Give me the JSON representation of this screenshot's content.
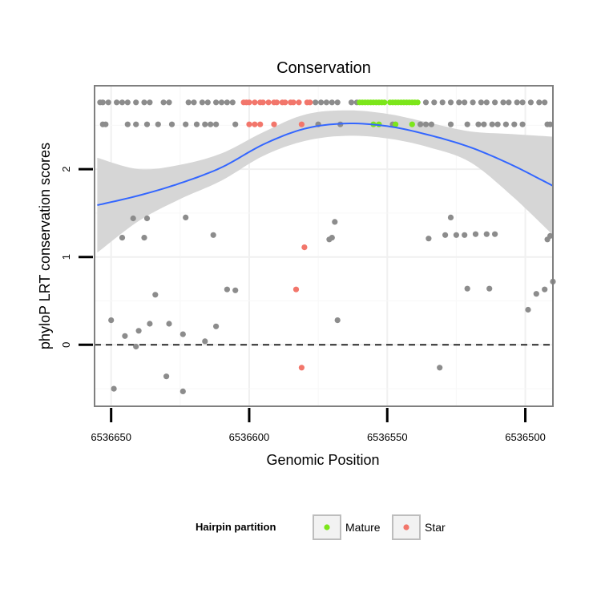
{
  "chart_data": {
    "type": "scatter",
    "title": "Conservation",
    "xlabel": "Genomic Position",
    "ylabel": "phyloP LRT conservation scores",
    "xlim": [
      6536656,
      6536490
    ],
    "ylim": [
      -0.7,
      2.95
    ],
    "x_reversed": true,
    "x_ticks": [
      6536650,
      6536600,
      6536550,
      6536500
    ],
    "x_tick_labels": [
      "6536650",
      "6536600",
      "6536550",
      "6536500"
    ],
    "y_ticks": [
      0,
      1,
      2
    ],
    "y_tick_labels": [
      "0",
      "1",
      "2"
    ],
    "grid": true,
    "reference_line": {
      "y": 0,
      "style": "dashed"
    },
    "legend": {
      "title": "Hairpin partition",
      "placement": "bottom",
      "entries": [
        {
          "name": "Mature",
          "color": "#7ce61a"
        },
        {
          "name": "Star",
          "color": "#f2766b"
        }
      ]
    },
    "colors": {
      "other": "#8c8c8c",
      "smooth_line": "#3366ff",
      "smooth_band": "#d6d6d6",
      "panel_border": "#7f7f7f"
    },
    "series": [
      {
        "name": "Other",
        "points": [
          [
            6536654,
            2.76
          ],
          [
            6536653,
            2.76
          ],
          [
            6536651,
            2.76
          ],
          [
            6536648,
            2.76
          ],
          [
            6536646,
            2.76
          ],
          [
            6536644,
            2.76
          ],
          [
            6536641,
            2.76
          ],
          [
            6536638,
            2.76
          ],
          [
            6536636,
            2.76
          ],
          [
            6536631,
            2.76
          ],
          [
            6536629,
            2.76
          ],
          [
            6536622,
            2.76
          ],
          [
            6536620,
            2.76
          ],
          [
            6536617,
            2.76
          ],
          [
            6536615,
            2.76
          ],
          [
            6536612,
            2.76
          ],
          [
            6536610,
            2.76
          ],
          [
            6536608,
            2.76
          ],
          [
            6536606,
            2.76
          ],
          [
            6536576,
            2.76
          ],
          [
            6536574,
            2.76
          ],
          [
            6536572,
            2.76
          ],
          [
            6536570,
            2.76
          ],
          [
            6536568,
            2.76
          ],
          [
            6536563,
            2.76
          ],
          [
            6536561,
            2.76
          ],
          [
            6536536,
            2.76
          ],
          [
            6536533,
            2.76
          ],
          [
            6536530,
            2.76
          ],
          [
            6536527,
            2.76
          ],
          [
            6536524,
            2.76
          ],
          [
            6536522,
            2.76
          ],
          [
            6536519,
            2.76
          ],
          [
            6536516,
            2.76
          ],
          [
            6536514,
            2.76
          ],
          [
            6536511,
            2.76
          ],
          [
            6536508,
            2.76
          ],
          [
            6536506,
            2.76
          ],
          [
            6536503,
            2.76
          ],
          [
            6536501,
            2.76
          ],
          [
            6536498,
            2.76
          ],
          [
            6536495,
            2.76
          ],
          [
            6536493,
            2.76
          ],
          [
            6536653,
            2.51
          ],
          [
            6536652,
            2.51
          ],
          [
            6536644,
            2.51
          ],
          [
            6536641,
            2.51
          ],
          [
            6536637,
            2.51
          ],
          [
            6536633,
            2.51
          ],
          [
            6536628,
            2.51
          ],
          [
            6536623,
            2.51
          ],
          [
            6536619,
            2.51
          ],
          [
            6536616,
            2.51
          ],
          [
            6536614,
            2.51
          ],
          [
            6536612,
            2.51
          ],
          [
            6536605,
            2.51
          ],
          [
            6536575,
            2.51
          ],
          [
            6536567,
            2.51
          ],
          [
            6536548,
            2.51
          ],
          [
            6536538,
            2.51
          ],
          [
            6536536,
            2.51
          ],
          [
            6536534,
            2.51
          ],
          [
            6536527,
            2.51
          ],
          [
            6536521,
            2.51
          ],
          [
            6536517,
            2.51
          ],
          [
            6536515,
            2.51
          ],
          [
            6536512,
            2.51
          ],
          [
            6536510,
            2.51
          ],
          [
            6536507,
            2.51
          ],
          [
            6536504,
            2.51
          ],
          [
            6536501,
            2.51
          ],
          [
            6536492,
            2.51
          ],
          [
            6536491,
            2.51
          ],
          [
            6536642,
            1.44
          ],
          [
            6536637,
            1.44
          ],
          [
            6536623,
            1.45
          ],
          [
            6536613,
            1.25
          ],
          [
            6536638,
            1.22
          ],
          [
            6536646,
            1.22
          ],
          [
            6536569,
            1.4
          ],
          [
            6536570,
            1.22
          ],
          [
            6536571,
            1.2
          ],
          [
            6536535,
            1.21
          ],
          [
            6536527,
            1.45
          ],
          [
            6536529,
            1.25
          ],
          [
            6536525,
            1.25
          ],
          [
            6536522,
            1.25
          ],
          [
            6536518,
            1.26
          ],
          [
            6536514,
            1.26
          ],
          [
            6536511,
            1.26
          ],
          [
            6536491,
            1.24
          ],
          [
            6536492,
            1.2
          ],
          [
            6536634,
            0.57
          ],
          [
            6536608,
            0.63
          ],
          [
            6536605,
            0.62
          ],
          [
            6536521,
            0.64
          ],
          [
            6536513,
            0.64
          ],
          [
            6536499,
            0.4
          ],
          [
            6536496,
            0.58
          ],
          [
            6536493,
            0.63
          ],
          [
            6536490,
            0.72
          ],
          [
            6536650,
            0.28
          ],
          [
            6536645,
            0.1
          ],
          [
            6536640,
            0.16
          ],
          [
            6536636,
            0.24
          ],
          [
            6536629,
            0.24
          ],
          [
            6536624,
            0.12
          ],
          [
            6536616,
            0.04
          ],
          [
            6536612,
            0.21
          ],
          [
            6536568,
            0.28
          ],
          [
            6536641,
            -0.02
          ],
          [
            6536630,
            -0.36
          ],
          [
            6536624,
            -0.53
          ],
          [
            6536649,
            -0.5
          ],
          [
            6536531,
            -0.26
          ]
        ]
      },
      {
        "name": "Mature",
        "points": [
          [
            6536560,
            2.76
          ],
          [
            6536559,
            2.76
          ],
          [
            6536558,
            2.76
          ],
          [
            6536557,
            2.76
          ],
          [
            6536556,
            2.76
          ],
          [
            6536555,
            2.76
          ],
          [
            6536554,
            2.76
          ],
          [
            6536553,
            2.76
          ],
          [
            6536552,
            2.76
          ],
          [
            6536551,
            2.76
          ],
          [
            6536549,
            2.76
          ],
          [
            6536548,
            2.76
          ],
          [
            6536547,
            2.76
          ],
          [
            6536546,
            2.76
          ],
          [
            6536545,
            2.76
          ],
          [
            6536544,
            2.76
          ],
          [
            6536543,
            2.76
          ],
          [
            6536542,
            2.76
          ],
          [
            6536541,
            2.76
          ],
          [
            6536540,
            2.76
          ],
          [
            6536539,
            2.76
          ],
          [
            6536555,
            2.51
          ],
          [
            6536553,
            2.51
          ],
          [
            6536547,
            2.51
          ],
          [
            6536541,
            2.51
          ]
        ]
      },
      {
        "name": "Star",
        "points": [
          [
            6536602,
            2.76
          ],
          [
            6536601,
            2.76
          ],
          [
            6536600,
            2.76
          ],
          [
            6536598,
            2.76
          ],
          [
            6536596,
            2.76
          ],
          [
            6536595,
            2.76
          ],
          [
            6536593,
            2.76
          ],
          [
            6536591,
            2.76
          ],
          [
            6536590,
            2.76
          ],
          [
            6536588,
            2.76
          ],
          [
            6536587,
            2.76
          ],
          [
            6536585,
            2.76
          ],
          [
            6536584,
            2.76
          ],
          [
            6536582,
            2.76
          ],
          [
            6536579,
            2.76
          ],
          [
            6536578,
            2.76
          ],
          [
            6536600,
            2.51
          ],
          [
            6536598,
            2.51
          ],
          [
            6536596,
            2.51
          ],
          [
            6536591,
            2.51
          ],
          [
            6536581,
            2.51
          ],
          [
            6536580,
            1.11
          ],
          [
            6536583,
            0.63
          ],
          [
            6536581,
            -0.26
          ]
        ]
      }
    ],
    "smooth": {
      "x": [
        6536655,
        6536640,
        6536625,
        6536610,
        6536595,
        6536580,
        6536565,
        6536550,
        6536535,
        6536520,
        6536505,
        6536490
      ],
      "y": [
        1.59,
        1.7,
        1.84,
        2.02,
        2.28,
        2.46,
        2.52,
        2.49,
        2.39,
        2.25,
        2.05,
        1.81
      ],
      "lower": [
        1.05,
        1.41,
        1.66,
        1.87,
        2.15,
        2.32,
        2.38,
        2.35,
        2.25,
        2.08,
        1.7,
        1.25
      ],
      "upper": [
        2.13,
        2.0,
        2.05,
        2.18,
        2.42,
        2.62,
        2.67,
        2.63,
        2.53,
        2.43,
        2.4,
        2.37
      ]
    }
  }
}
